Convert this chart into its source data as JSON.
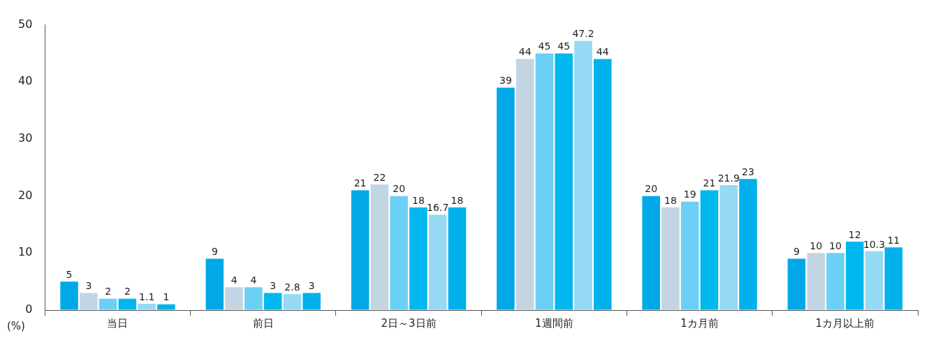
{
  "chart_data": {
    "type": "bar",
    "ylabel": "(%)",
    "categories": [
      "当日",
      "前日",
      "2日～3日前",
      "1週間前",
      "1カ月前",
      "1カ月以上前"
    ],
    "series": [
      {
        "color": "#00a8e8",
        "values": [
          5,
          9,
          21,
          39,
          20,
          9
        ]
      },
      {
        "color": "#c3d5e2",
        "values": [
          3,
          4,
          22,
          44,
          18,
          10
        ]
      },
      {
        "color": "#6ccff6",
        "values": [
          2,
          4,
          20,
          45,
          19,
          10
        ]
      },
      {
        "color": "#00b8ef",
        "values": [
          2,
          3,
          18,
          45,
          21,
          12
        ]
      },
      {
        "color": "#96d9f5",
        "values": [
          1.1,
          2.8,
          16.7,
          47.2,
          21.9,
          10.3
        ]
      },
      {
        "color": "#00b1ec",
        "values": [
          1,
          3,
          18,
          44,
          23,
          11
        ]
      }
    ],
    "ylim": [
      0,
      50
    ],
    "yticks": [
      0,
      10,
      20,
      30,
      40,
      50
    ],
    "grid": false,
    "legend": false,
    "data_labels": true
  }
}
